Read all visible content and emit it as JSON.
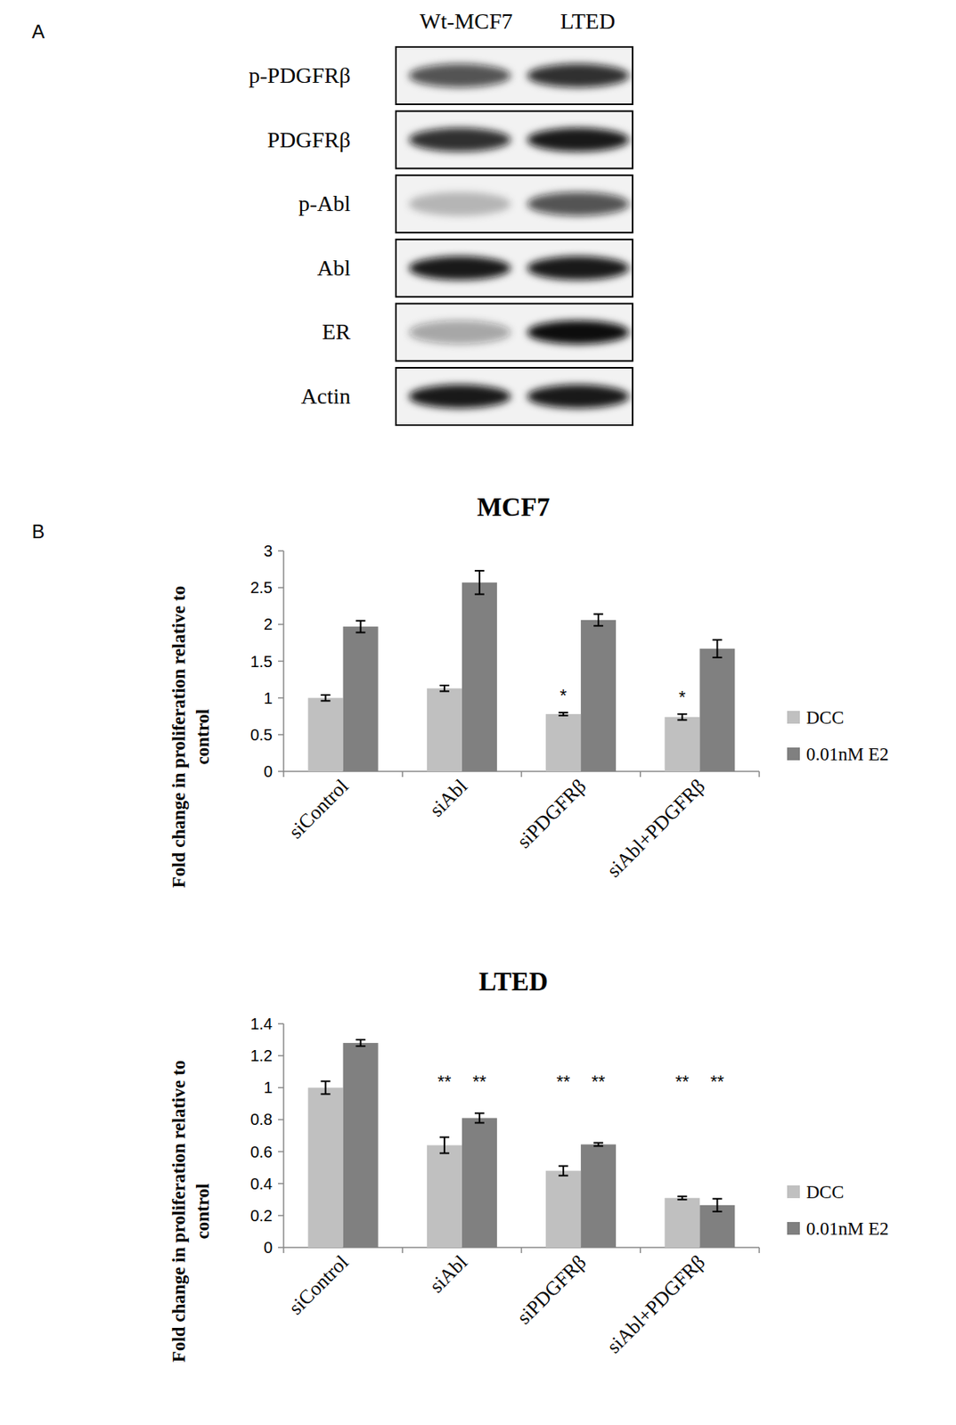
{
  "panel_labels": [
    "A",
    "B"
  ],
  "blot": {
    "lanes": [
      "Wt-MCF7",
      "LTED"
    ],
    "rows": [
      {
        "label": "p-PDGFRβ",
        "intensity": [
          0.7,
          0.85
        ]
      },
      {
        "label": "PDGFRβ",
        "intensity": [
          0.85,
          0.95
        ]
      },
      {
        "label": "p-Abl",
        "intensity": [
          0.25,
          0.7
        ]
      },
      {
        "label": "Abl",
        "intensity": [
          0.95,
          0.95
        ]
      },
      {
        "label": "ER",
        "intensity": [
          0.35,
          1.0
        ]
      },
      {
        "label": "Actin",
        "intensity": [
          0.95,
          0.95
        ]
      }
    ]
  },
  "chart_data": [
    {
      "type": "bar",
      "title": "MCF7",
      "y_label": "Fold change in proliferation relative to control",
      "categories": [
        "siControl",
        "siAbl",
        "siPDGFRβ",
        "siAbl+PDGFRβ"
      ],
      "series": [
        {
          "name": "DCC",
          "color": "#c0c0c0",
          "values": [
            1.0,
            1.13,
            0.78,
            0.74
          ],
          "errors": [
            0.04,
            0.04,
            0.02,
            0.04
          ],
          "significance": [
            null,
            null,
            "*",
            "*"
          ]
        },
        {
          "name": "0.01nM E2",
          "color": "#808080",
          "values": [
            1.97,
            2.57,
            2.06,
            1.67
          ],
          "errors": [
            0.08,
            0.16,
            0.08,
            0.12
          ],
          "significance": [
            null,
            null,
            null,
            null
          ]
        }
      ],
      "ylim": [
        0,
        3
      ],
      "yticks": [
        0,
        0.5,
        1,
        1.5,
        2,
        2.5,
        3
      ],
      "grid": false,
      "legend": "right"
    },
    {
      "type": "bar",
      "title": "LTED",
      "y_label": "Fold change in proliferation relative to control",
      "categories": [
        "siControl",
        "siAbl",
        "siPDGFRβ",
        "siAbl+PDGFRβ"
      ],
      "series": [
        {
          "name": "DCC",
          "color": "#c0c0c0",
          "values": [
            1.0,
            0.64,
            0.48,
            0.31
          ],
          "errors": [
            0.04,
            0.05,
            0.03,
            0.01
          ],
          "significance": [
            null,
            "**",
            "**",
            "**"
          ]
        },
        {
          "name": "0.01nM E2",
          "color": "#808080",
          "values": [
            1.28,
            0.81,
            0.645,
            0.265
          ],
          "errors": [
            0.02,
            0.03,
            0.01,
            0.04
          ],
          "significance": [
            null,
            "**",
            "**",
            "**"
          ]
        }
      ],
      "ylim": [
        0,
        1.4
      ],
      "yticks": [
        0,
        0.2,
        0.4,
        0.6,
        0.8,
        1,
        1.2,
        1.4
      ],
      "grid": false,
      "legend": "right"
    }
  ]
}
